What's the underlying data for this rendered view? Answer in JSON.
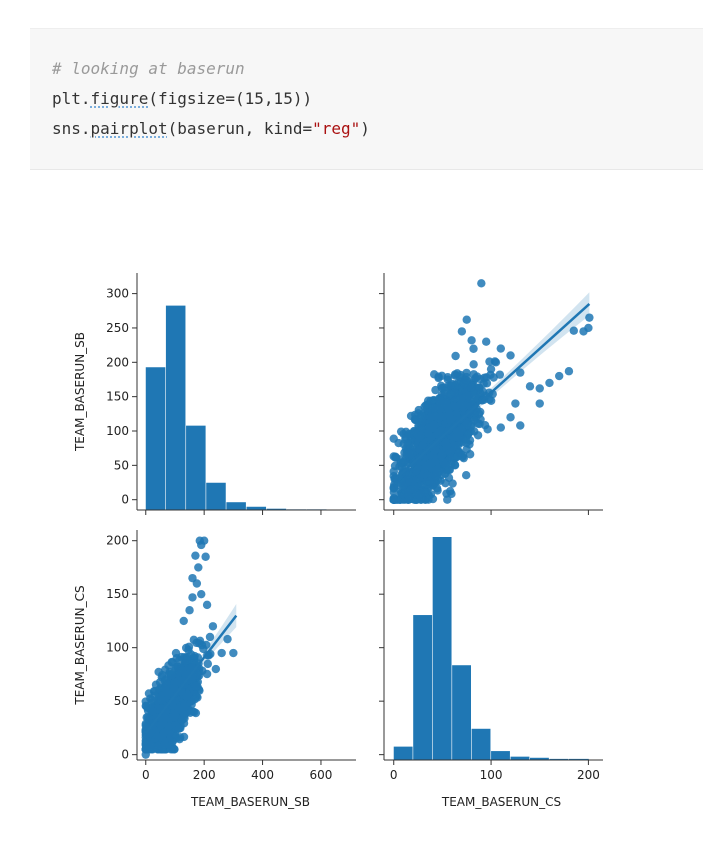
{
  "code": {
    "comment": "# looking at baserun",
    "line2": {
      "a": "plt.",
      "b": "figure",
      "c": "(figsize=(15,15))"
    },
    "line3": {
      "a": "sns.",
      "b": "pairplot",
      "c": "(baserun, kind=",
      "d": "\"reg\"",
      "e": ")"
    }
  },
  "chart_data": {
    "type": "pairplot",
    "kind": "reg",
    "variables": [
      "TEAM_BASERUN_SB",
      "TEAM_BASERUN_CS"
    ],
    "color": "#1f77b4",
    "hist_sb": {
      "bin_edges": [
        0,
        69,
        138,
        207,
        276,
        345,
        414,
        483,
        552,
        621,
        690
      ],
      "counts": [
        220,
        315,
        130,
        42,
        12,
        5,
        2,
        1,
        1,
        0
      ]
    },
    "hist_cs": {
      "bin_edges": [
        0,
        20,
        40,
        60,
        80,
        100,
        120,
        140,
        160,
        180,
        201
      ],
      "counts": [
        12,
        130,
        200,
        85,
        28,
        8,
        3,
        2,
        1,
        1
      ]
    },
    "scatter_cs_vs_sb": {
      "x_label": "TEAM_BASERUN_SB",
      "y_label": "TEAM_BASERUN_CS",
      "regression": {
        "x": [
          0,
          310
        ],
        "y": [
          20,
          130
        ]
      },
      "outliers": [
        [
          200,
          200
        ],
        [
          185,
          200
        ],
        [
          190,
          196
        ],
        [
          170,
          186
        ],
        [
          205,
          185
        ],
        [
          180,
          175
        ],
        [
          160,
          165
        ],
        [
          175,
          160
        ],
        [
          190,
          150
        ],
        [
          160,
          147
        ],
        [
          210,
          140
        ],
        [
          230,
          120
        ],
        [
          220,
          110
        ],
        [
          280,
          108
        ],
        [
          300,
          95
        ],
        [
          260,
          95
        ],
        [
          240,
          80
        ],
        [
          150,
          135
        ],
        [
          130,
          125
        ],
        [
          30,
          55
        ],
        [
          0,
          0
        ],
        [
          15,
          20
        ]
      ]
    },
    "scatter_sb_vs_cs": {
      "x_label": "TEAM_BASERUN_CS",
      "y_label": "TEAM_BASERUN_SB",
      "regression": {
        "x": [
          0,
          201
        ],
        "y": [
          28,
          285
        ]
      },
      "outliers": [
        [
          90,
          315
        ],
        [
          75,
          262
        ],
        [
          70,
          245
        ],
        [
          80,
          232
        ],
        [
          95,
          230
        ],
        [
          110,
          220
        ],
        [
          120,
          210
        ],
        [
          105,
          200
        ],
        [
          100,
          190
        ],
        [
          130,
          185
        ],
        [
          140,
          165
        ],
        [
          150,
          162
        ],
        [
          160,
          170
        ],
        [
          170,
          180
        ],
        [
          180,
          187
        ],
        [
          150,
          140
        ],
        [
          125,
          140
        ],
        [
          120,
          120
        ],
        [
          110,
          105
        ],
        [
          130,
          108
        ],
        [
          195,
          245
        ],
        [
          200,
          250
        ],
        [
          201,
          265
        ],
        [
          185,
          246
        ],
        [
          55,
          0
        ],
        [
          0,
          0
        ],
        [
          10,
          20
        ],
        [
          20,
          15
        ]
      ]
    },
    "axes": {
      "sb_ticks": [
        0,
        50,
        100,
        150,
        200,
        250,
        300
      ],
      "cs_y_ticks": [
        0,
        50,
        100,
        150,
        200
      ],
      "sb_x_ticks": [
        0,
        200,
        400,
        600
      ],
      "cs_x_ticks": [
        0,
        100,
        200
      ],
      "sb_lim": [
        -15,
        330
      ],
      "cs_ylim": [
        -5,
        210
      ],
      "sb_xlim": [
        -30,
        720
      ],
      "cs_xlim": [
        -10,
        215
      ]
    },
    "grid": false,
    "legend": "none"
  }
}
